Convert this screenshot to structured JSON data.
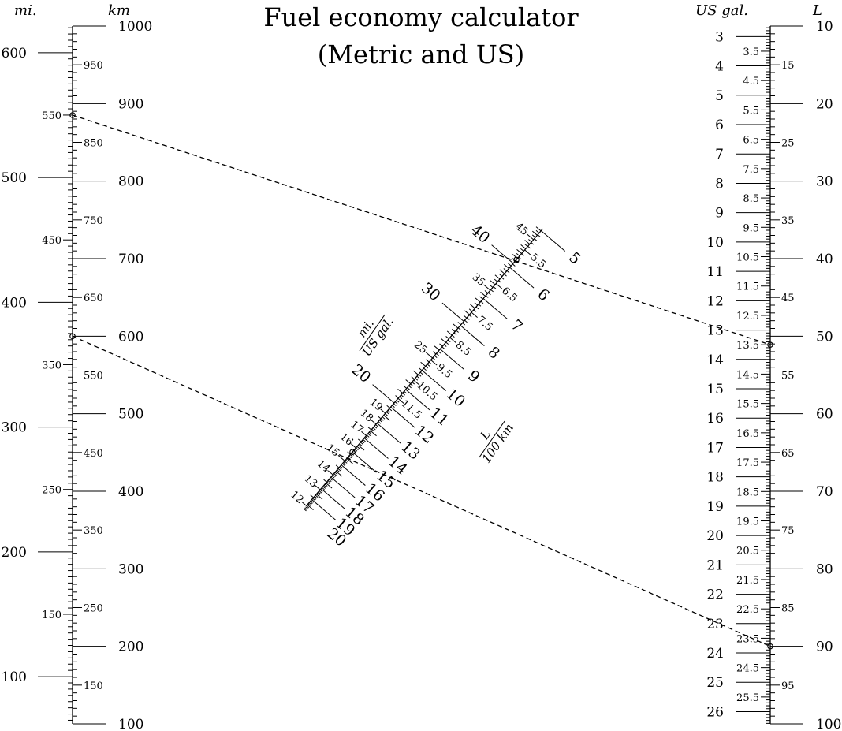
{
  "title": {
    "line1": "Fuel economy calculator",
    "line2": "(Metric and US)"
  },
  "scales": {
    "distance": {
      "mi_label": "mi.",
      "km_label": "km",
      "km_range": [
        100,
        1000
      ],
      "mi_major": [
        100,
        200,
        300,
        400,
        500,
        600
      ],
      "mi_minor_labeled": [
        150,
        250,
        350,
        450,
        550
      ],
      "km_major": [
        100,
        200,
        300,
        400,
        500,
        600,
        700,
        800,
        900,
        1000
      ],
      "km_minor_labeled": [
        150,
        250,
        350,
        450,
        550,
        650,
        750,
        850,
        950
      ]
    },
    "volume": {
      "gal_label": "US gal.",
      "l_label": "L",
      "l_range": [
        10,
        100
      ],
      "gal_major": [
        3,
        4,
        5,
        6,
        7,
        8,
        9,
        10,
        11,
        12,
        13,
        14,
        15,
        16,
        17,
        18,
        19,
        20,
        21,
        22,
        23,
        24,
        25,
        26
      ],
      "gal_minor_labeled": [
        "3.5",
        "4.5",
        "5.5",
        "6.5",
        "7.5",
        "8.5",
        "9.5",
        "10.5",
        "11.5",
        "12.5",
        "13.5",
        "14.5",
        "15.5",
        "16.5",
        "17.5",
        "18.5",
        "19.5",
        "20.5",
        "21.5",
        "22.5",
        "23.5",
        "24.5",
        "25.5"
      ],
      "l_major": [
        10,
        20,
        30,
        40,
        50,
        60,
        70,
        80,
        90,
        100
      ],
      "l_minor_labeled": [
        15,
        25,
        35,
        45,
        55,
        65,
        75,
        85,
        95
      ]
    },
    "economy": {
      "mpg_label_num": "mi.",
      "mpg_label_den": "US gal.",
      "l100_label_num": "L",
      "l100_label_den": "100 km",
      "mpg_big": [
        20,
        30,
        40
      ],
      "mpg_small": [
        12,
        13,
        14,
        15,
        16,
        17,
        18,
        19,
        25,
        35,
        45
      ],
      "l100_big": [
        5,
        6,
        7,
        8,
        9,
        10,
        11,
        12,
        13,
        14,
        15,
        16,
        17,
        18,
        19,
        20
      ],
      "l100_small": [
        "5.5",
        "6.5",
        "7.5",
        "8.5",
        "9.5",
        "10.5",
        "11.5"
      ]
    }
  },
  "examples": [
    {
      "mi": 550,
      "gal": 13.5
    },
    {
      "km": 600,
      "l": 90
    }
  ]
}
